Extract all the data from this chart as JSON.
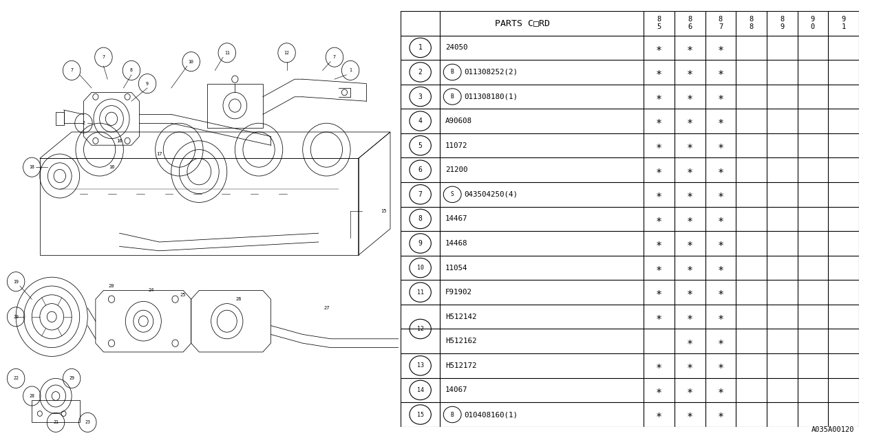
{
  "bg_color": "#ffffff",
  "table_header": "PARTS C□RD",
  "year_cols": [
    "8\n5",
    "8\n6",
    "8\n7",
    "8\n8",
    "8\n9",
    "9\n0",
    "9\n1"
  ],
  "rows": [
    {
      "num": "1",
      "prefix": "",
      "code": "24050",
      "stars": [
        1,
        1,
        1,
        0,
        0,
        0,
        0
      ]
    },
    {
      "num": "2",
      "prefix": "B",
      "code": "011308252(2)",
      "stars": [
        1,
        1,
        1,
        0,
        0,
        0,
        0
      ]
    },
    {
      "num": "3",
      "prefix": "B",
      "code": "011308180(1)",
      "stars": [
        1,
        1,
        1,
        0,
        0,
        0,
        0
      ]
    },
    {
      "num": "4",
      "prefix": "",
      "code": "A90608",
      "stars": [
        1,
        1,
        1,
        0,
        0,
        0,
        0
      ]
    },
    {
      "num": "5",
      "prefix": "",
      "code": "11072",
      "stars": [
        1,
        1,
        1,
        0,
        0,
        0,
        0
      ]
    },
    {
      "num": "6",
      "prefix": "",
      "code": "21200",
      "stars": [
        1,
        1,
        1,
        0,
        0,
        0,
        0
      ]
    },
    {
      "num": "7",
      "prefix": "S",
      "code": "043504250(4)",
      "stars": [
        1,
        1,
        1,
        0,
        0,
        0,
        0
      ]
    },
    {
      "num": "8",
      "prefix": "",
      "code": "14467",
      "stars": [
        1,
        1,
        1,
        0,
        0,
        0,
        0
      ]
    },
    {
      "num": "9",
      "prefix": "",
      "code": "14468",
      "stars": [
        1,
        1,
        1,
        0,
        0,
        0,
        0
      ]
    },
    {
      "num": "10",
      "prefix": "",
      "code": "11054",
      "stars": [
        1,
        1,
        1,
        0,
        0,
        0,
        0
      ]
    },
    {
      "num": "11",
      "prefix": "",
      "code": "F91902",
      "stars": [
        1,
        1,
        1,
        0,
        0,
        0,
        0
      ]
    },
    {
      "num": "12",
      "prefix": "",
      "code": "H512142",
      "stars": [
        1,
        1,
        1,
        0,
        0,
        0,
        0
      ],
      "sub": true
    },
    {
      "num": "",
      "prefix": "",
      "code": "H512162",
      "stars": [
        0,
        1,
        1,
        0,
        0,
        0,
        0
      ],
      "sub": false
    },
    {
      "num": "13",
      "prefix": "",
      "code": "H512172",
      "stars": [
        1,
        1,
        1,
        0,
        0,
        0,
        0
      ]
    },
    {
      "num": "14",
      "prefix": "",
      "code": "14067",
      "stars": [
        1,
        1,
        1,
        0,
        0,
        0,
        0
      ]
    },
    {
      "num": "15",
      "prefix": "B",
      "code": "010408160(1)",
      "stars": [
        1,
        1,
        1,
        0,
        0,
        0,
        0
      ]
    }
  ],
  "footer_code": "A035A00120"
}
